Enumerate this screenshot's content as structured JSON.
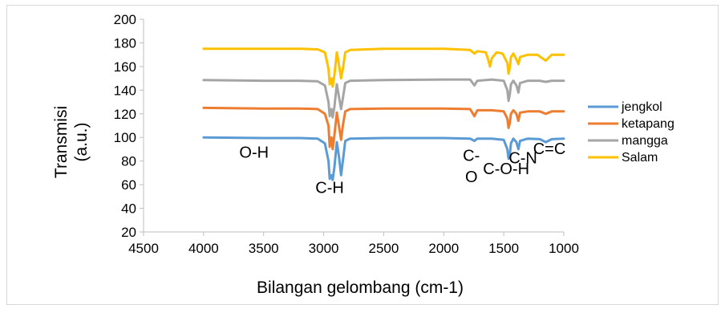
{
  "chart_data": {
    "type": "line",
    "title": "",
    "xlabel": "Bilangan gelombang (cm-1)",
    "ylabel_line1": "Transmisi",
    "ylabel_line2": "(a.u.)",
    "xlim": [
      4500,
      1000
    ],
    "ylim": [
      20,
      200
    ],
    "x_reversed": true,
    "x_ticks": [
      4500,
      4000,
      3500,
      3000,
      2500,
      2000,
      1500,
      1000
    ],
    "y_ticks": [
      20,
      40,
      60,
      80,
      100,
      120,
      140,
      160,
      180,
      200
    ],
    "grid": false,
    "legend_position": "right",
    "series": [
      {
        "name": "jengkol",
        "color": "#5b9bd5",
        "points": [
          [
            4000,
            100
          ],
          [
            3500,
            99.5
          ],
          [
            3200,
            99.5
          ],
          [
            3050,
            99
          ],
          [
            2990,
            95
          ],
          [
            2960,
            80
          ],
          [
            2950,
            65
          ],
          [
            2935,
            68
          ],
          [
            2925,
            64
          ],
          [
            2910,
            75
          ],
          [
            2890,
            96
          ],
          [
            2870,
            82
          ],
          [
            2855,
            68
          ],
          [
            2840,
            80
          ],
          [
            2820,
            97
          ],
          [
            2780,
            99
          ],
          [
            2500,
            99.5
          ],
          [
            2000,
            99.5
          ],
          [
            1780,
            99
          ],
          [
            1745,
            97
          ],
          [
            1720,
            99
          ],
          [
            1600,
            99
          ],
          [
            1500,
            98
          ],
          [
            1470,
            90
          ],
          [
            1460,
            82
          ],
          [
            1450,
            85
          ],
          [
            1440,
            95
          ],
          [
            1420,
            99
          ],
          [
            1395,
            96
          ],
          [
            1378,
            90
          ],
          [
            1365,
            97
          ],
          [
            1300,
            99
          ],
          [
            1200,
            98.5
          ],
          [
            1150,
            96
          ],
          [
            1100,
            98.5
          ],
          [
            1000,
            99
          ]
        ]
      },
      {
        "name": "ketapang",
        "color": "#ed7d31",
        "points": [
          [
            4000,
            125
          ],
          [
            3500,
            124.5
          ],
          [
            3200,
            124.5
          ],
          [
            3050,
            124
          ],
          [
            2990,
            120
          ],
          [
            2960,
            110
          ],
          [
            2950,
            92
          ],
          [
            2935,
            100
          ],
          [
            2925,
            90
          ],
          [
            2910,
            102
          ],
          [
            2890,
            121
          ],
          [
            2870,
            108
          ],
          [
            2855,
            98
          ],
          [
            2840,
            110
          ],
          [
            2820,
            122
          ],
          [
            2780,
            124
          ],
          [
            2500,
            124.5
          ],
          [
            2000,
            124.5
          ],
          [
            1780,
            124
          ],
          [
            1745,
            118
          ],
          [
            1720,
            123
          ],
          [
            1600,
            123
          ],
          [
            1500,
            122
          ],
          [
            1470,
            116
          ],
          [
            1460,
            108
          ],
          [
            1450,
            112
          ],
          [
            1440,
            120
          ],
          [
            1420,
            123
          ],
          [
            1395,
            120
          ],
          [
            1378,
            114
          ],
          [
            1365,
            121
          ],
          [
            1300,
            122
          ],
          [
            1200,
            122
          ],
          [
            1150,
            120
          ],
          [
            1100,
            122
          ],
          [
            1000,
            122
          ]
        ]
      },
      {
        "name": "mangga",
        "color": "#a5a5a5",
        "points": [
          [
            4000,
            148.5
          ],
          [
            3500,
            148
          ],
          [
            3200,
            148
          ],
          [
            3050,
            147.5
          ],
          [
            2990,
            144
          ],
          [
            2960,
            130
          ],
          [
            2950,
            118
          ],
          [
            2935,
            124
          ],
          [
            2925,
            117
          ],
          [
            2910,
            126
          ],
          [
            2890,
            145
          ],
          [
            2870,
            133
          ],
          [
            2855,
            124
          ],
          [
            2840,
            133
          ],
          [
            2820,
            146
          ],
          [
            2780,
            148
          ],
          [
            2500,
            148.5
          ],
          [
            2000,
            149
          ],
          [
            1780,
            149
          ],
          [
            1745,
            144
          ],
          [
            1720,
            148
          ],
          [
            1600,
            149
          ],
          [
            1500,
            148
          ],
          [
            1470,
            140
          ],
          [
            1460,
            131
          ],
          [
            1450,
            136
          ],
          [
            1440,
            145
          ],
          [
            1420,
            148
          ],
          [
            1395,
            144
          ],
          [
            1378,
            138
          ],
          [
            1365,
            146
          ],
          [
            1300,
            148
          ],
          [
            1200,
            148
          ],
          [
            1150,
            147
          ],
          [
            1100,
            148
          ],
          [
            1000,
            148
          ]
        ]
      },
      {
        "name": "Salam",
        "color": "#ffc000",
        "points": [
          [
            4000,
            175
          ],
          [
            3500,
            175
          ],
          [
            3200,
            175
          ],
          [
            3050,
            174.5
          ],
          [
            2990,
            172
          ],
          [
            2960,
            158
          ],
          [
            2950,
            145
          ],
          [
            2935,
            150
          ],
          [
            2925,
            143
          ],
          [
            2910,
            153
          ],
          [
            2890,
            172
          ],
          [
            2870,
            160
          ],
          [
            2855,
            150
          ],
          [
            2840,
            158
          ],
          [
            2820,
            172
          ],
          [
            2780,
            174
          ],
          [
            2500,
            175
          ],
          [
            2000,
            175
          ],
          [
            1780,
            174
          ],
          [
            1745,
            171
          ],
          [
            1720,
            173
          ],
          [
            1650,
            172
          ],
          [
            1630,
            166
          ],
          [
            1615,
            160
          ],
          [
            1600,
            167
          ],
          [
            1560,
            172
          ],
          [
            1510,
            171
          ],
          [
            1470,
            163
          ],
          [
            1460,
            154
          ],
          [
            1450,
            159
          ],
          [
            1440,
            168
          ],
          [
            1420,
            171
          ],
          [
            1395,
            166
          ],
          [
            1378,
            162
          ],
          [
            1365,
            168
          ],
          [
            1300,
            170
          ],
          [
            1220,
            170
          ],
          [
            1180,
            167
          ],
          [
            1150,
            165
          ],
          [
            1120,
            168
          ],
          [
            1100,
            170
          ],
          [
            1000,
            170
          ]
        ]
      }
    ],
    "annotations": [
      {
        "text": "O-H",
        "x": 3580,
        "y": 83
      },
      {
        "text": "C-H",
        "x": 2950,
        "y": 53
      },
      {
        "text": "C-",
        "x": 1770,
        "y": 80
      },
      {
        "text": "O",
        "x": 1770,
        "y": 62
      },
      {
        "text": "C-O-H",
        "x": 1480,
        "y": 69
      },
      {
        "text": "C-N",
        "x": 1340,
        "y": 78
      },
      {
        "text": "C=C",
        "x": 1120,
        "y": 86
      }
    ]
  }
}
